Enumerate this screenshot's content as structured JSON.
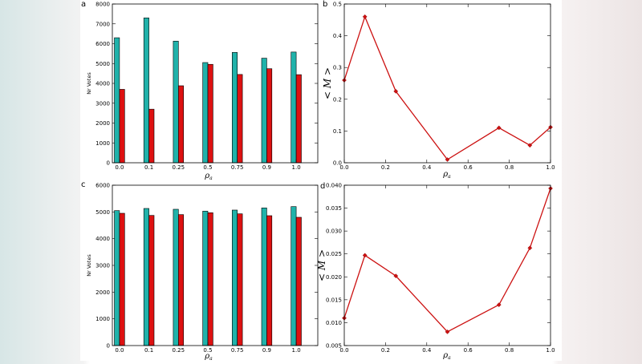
{
  "colors": {
    "teal": "#20b2aa",
    "red": "#dd1111",
    "line": "#cc1111"
  },
  "chart_data": [
    {
      "panel": "a",
      "type": "bar",
      "categories": [
        "0.0",
        "0.1",
        "0.25",
        "0.5",
        "0.75",
        "0.9",
        "1.0"
      ],
      "series": [
        {
          "name": "teal",
          "values": [
            6300,
            7300,
            6130,
            5050,
            5560,
            5270,
            5580
          ]
        },
        {
          "name": "red",
          "values": [
            3700,
            2700,
            3880,
            4960,
            4450,
            4740,
            4440
          ]
        }
      ],
      "ylim": [
        0,
        8000
      ],
      "yticks": [
        "0",
        "1000",
        "2000",
        "3000",
        "4000",
        "5000",
        "6000",
        "7000",
        "8000"
      ],
      "ylabel": "Nr Votes",
      "xlabel": "ρ",
      "xlabel_sub": "a"
    },
    {
      "panel": "b",
      "type": "line",
      "x": [
        0.0,
        0.1,
        0.25,
        0.5,
        0.75,
        0.9,
        1.0
      ],
      "y": [
        0.26,
        0.46,
        0.225,
        0.01,
        0.11,
        0.055,
        0.112
      ],
      "xlim": [
        0,
        1
      ],
      "ylim": [
        0,
        0.5
      ],
      "xticks": [
        "0.0",
        "0.2",
        "0.4",
        "0.6",
        "0.8",
        "1.0"
      ],
      "yticks": [
        "0.0",
        "0.1",
        "0.2",
        "0.3",
        "0.4",
        "0.5"
      ],
      "ylabel": "< M >",
      "xlabel": "ρ",
      "xlabel_sub": "a"
    },
    {
      "panel": "c",
      "type": "bar",
      "categories": [
        "0.0",
        "0.1",
        "0.25",
        "0.5",
        "0.75",
        "0.9",
        "1.0"
      ],
      "series": [
        {
          "name": "teal",
          "values": [
            5050,
            5130,
            5100,
            5030,
            5070,
            5150,
            5200
          ]
        },
        {
          "name": "red",
          "values": [
            4950,
            4870,
            4900,
            4970,
            4930,
            4860,
            4800
          ]
        }
      ],
      "ylim": [
        0,
        6000
      ],
      "yticks": [
        "0",
        "1000",
        "2000",
        "3000",
        "4000",
        "5000",
        "6000"
      ],
      "ylabel": "Nr Votes",
      "xlabel": "ρ",
      "xlabel_sub": "a"
    },
    {
      "panel": "d",
      "type": "line",
      "x": [
        0.0,
        0.1,
        0.25,
        0.5,
        0.75,
        0.9,
        1.0
      ],
      "y": [
        0.011,
        0.0247,
        0.0202,
        0.008,
        0.0139,
        0.0263,
        0.0393
      ],
      "xlim": [
        0,
        1
      ],
      "ylim": [
        0.005,
        0.04
      ],
      "xticks": [
        "0.0",
        "0.2",
        "0.4",
        "0.6",
        "0.8",
        "1.0"
      ],
      "yticks": [
        "0.005",
        "0.010",
        "0.015",
        "0.020",
        "0.025",
        "0.030",
        "0.035",
        "0.040"
      ],
      "ylabel": "< M >",
      "xlabel": "ρ",
      "xlabel_sub": "a"
    }
  ]
}
